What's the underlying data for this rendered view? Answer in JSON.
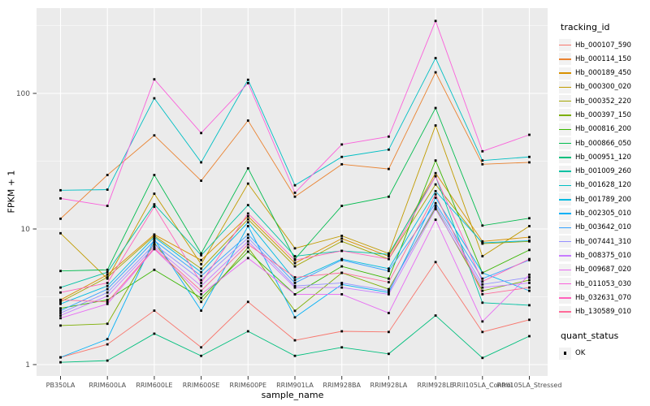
{
  "chart_data": {
    "type": "line",
    "title": "",
    "xlabel": "sample_name",
    "ylabel": "FPKM + 1",
    "y_scale": "log10",
    "ylim": [
      0.85,
      425
    ],
    "y_ticks": [
      1,
      10,
      100
    ],
    "y_minor_ticks": [
      3.162,
      31.62,
      316.2
    ],
    "grid": true,
    "legend_position": "right",
    "panel_bg": "#EBEBEB",
    "grid_color": "#FFFFFF",
    "tick_label_color": "#4D4D4D",
    "point_color": "#000000",
    "point_shape": "square",
    "categories": [
      "PB350LA",
      "RRIM600LA",
      "RRIM600LE",
      "RRIM600SE",
      "RRIM600PE",
      "RRIM901LA",
      "RRIM928BA",
      "RRIM928LA",
      "RRIM928LE",
      "RRII105LA_Control",
      "RRII105LA_Stressed"
    ],
    "series": [
      {
        "name": "Hb_000107_590",
        "color": "#F8766D",
        "values": [
          1.13,
          1.41,
          2.5,
          1.34,
          2.9,
          1.51,
          1.76,
          1.74,
          5.7,
          1.74,
          2.14
        ]
      },
      {
        "name": "Hb_000114_150",
        "color": "#EA8331",
        "values": [
          11.9,
          25,
          49,
          22.7,
          63,
          17.3,
          30,
          27.7,
          143,
          30,
          31
        ]
      },
      {
        "name": "Hb_000189_450",
        "color": "#D89000",
        "values": [
          3.0,
          4.6,
          9.1,
          5.9,
          12.4,
          5.6,
          8.5,
          6.3,
          25.8,
          8.1,
          8.7
        ]
      },
      {
        "name": "Hb_000300_020",
        "color": "#C09B00",
        "values": [
          9.3,
          4.3,
          18.2,
          5.5,
          21.6,
          7.2,
          8.9,
          6.6,
          58,
          6.3,
          10.5
        ]
      },
      {
        "name": "Hb_000352_220",
        "color": "#A3A500",
        "values": [
          2.9,
          4.4,
          8.9,
          5.1,
          11.8,
          5.3,
          8.1,
          6.0,
          21.3,
          7.8,
          8.1
        ]
      },
      {
        "name": "Hb_000397_150",
        "color": "#7CAE00",
        "values": [
          1.94,
          2.0,
          7.9,
          2.9,
          7.3,
          2.49,
          4.75,
          3.6,
          14.3,
          3.5,
          4.2
        ]
      },
      {
        "name": "Hb_000816_200",
        "color": "#39B600",
        "values": [
          2.6,
          3.0,
          5.0,
          3.1,
          6.8,
          3.3,
          5.3,
          4.3,
          32,
          4.75,
          7.0
        ]
      },
      {
        "name": "Hb_000866_050",
        "color": "#00BB4E",
        "values": [
          4.9,
          5.0,
          25,
          6.6,
          28,
          6.0,
          14.8,
          17.3,
          78,
          10.6,
          12.0
        ]
      },
      {
        "name": "Hb_000951_120",
        "color": "#00BF7D",
        "values": [
          1.04,
          1.07,
          1.69,
          1.16,
          1.76,
          1.16,
          1.34,
          1.2,
          2.3,
          1.12,
          1.62
        ]
      },
      {
        "name": "Hb_001009_260",
        "color": "#00C1A3",
        "values": [
          3.7,
          4.8,
          15.2,
          6.4,
          15.0,
          6.3,
          6.9,
          6.5,
          24.5,
          2.86,
          2.74
        ]
      },
      {
        "name": "Hb_001628_120",
        "color": "#00BFC4",
        "values": [
          19.3,
          19.5,
          92,
          31,
          126,
          21,
          34,
          38.5,
          182,
          32,
          34
        ]
      },
      {
        "name": "Hb_001789_200",
        "color": "#00BAE0",
        "values": [
          2.8,
          3.8,
          8.7,
          4.8,
          11.2,
          4.2,
          6.0,
          5.1,
          19.0,
          7.9,
          8.2
        ]
      },
      {
        "name": "Hb_002305_010",
        "color": "#00B0F6",
        "values": [
          1.13,
          1.54,
          8.4,
          2.5,
          10.5,
          2.23,
          3.9,
          3.4,
          17.0,
          4.75,
          3.5
        ]
      },
      {
        "name": "Hb_003642_010",
        "color": "#35A2FF",
        "values": [
          2.5,
          3.6,
          8.2,
          4.5,
          9.1,
          4.0,
          5.9,
          4.9,
          15.5,
          4.3,
          5.9
        ]
      },
      {
        "name": "Hb_007441_310",
        "color": "#9590FF",
        "values": [
          2.4,
          3.4,
          7.7,
          4.2,
          8.6,
          3.8,
          4.0,
          3.5,
          14.8,
          3.9,
          4.4
        ]
      },
      {
        "name": "Hb_008375_010",
        "color": "#C77CFF",
        "values": [
          2.3,
          3.2,
          7.4,
          3.8,
          8.1,
          3.7,
          3.7,
          3.3,
          14.0,
          3.7,
          4.0
        ]
      },
      {
        "name": "Hb_009687_020",
        "color": "#E76BF3",
        "values": [
          2.2,
          2.8,
          7.1,
          3.3,
          6.1,
          3.3,
          3.3,
          2.4,
          11.7,
          2.08,
          4.6
        ]
      },
      {
        "name": "Hb_011053_030",
        "color": "#FA62DB",
        "values": [
          16.8,
          14.8,
          127,
          51,
          119,
          18.5,
          42,
          48,
          342,
          37.4,
          49.5
        ]
      },
      {
        "name": "Hb_032631_070",
        "color": "#FF62BC",
        "values": [
          3.4,
          4.0,
          14.6,
          4.0,
          13.0,
          5.9,
          6.9,
          6.0,
          24.5,
          4.1,
          6.0
        ]
      },
      {
        "name": "Hb_130589_010",
        "color": "#FF6A98",
        "values": [
          3.0,
          2.9,
          7.2,
          3.5,
          7.7,
          4.4,
          4.75,
          4.05,
          18.0,
          3.3,
          3.7
        ]
      }
    ]
  },
  "legend": {
    "color_title": "tracking_id",
    "shape_title": "quant_status",
    "shape_items": [
      {
        "label": "OK"
      }
    ]
  }
}
